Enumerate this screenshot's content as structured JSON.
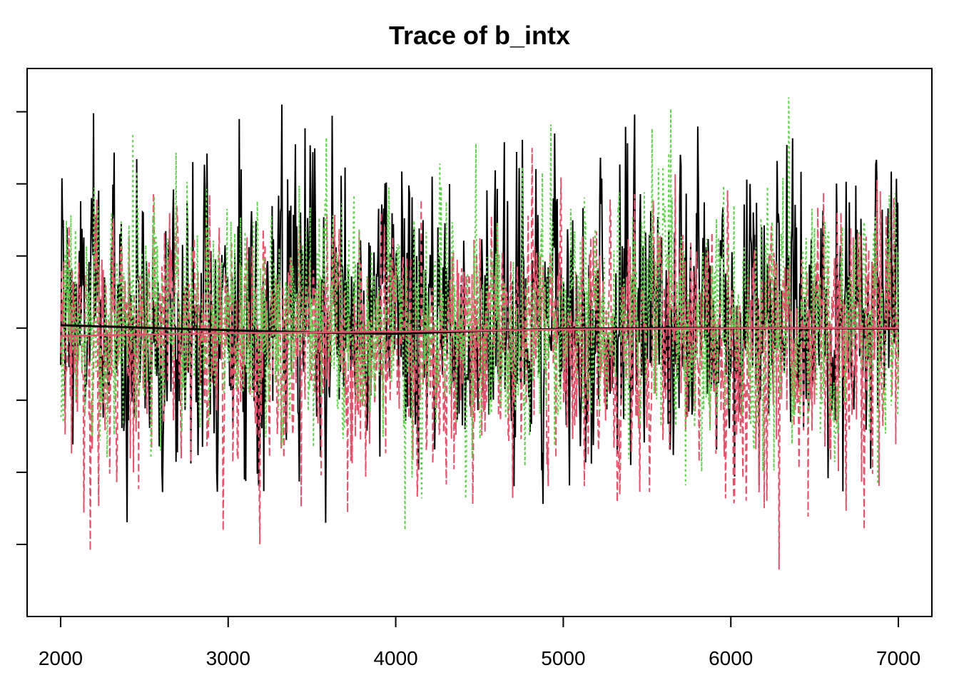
{
  "chart_data": {
    "type": "line",
    "title": "Trace of b_intx",
    "xlabel": "",
    "ylabel": "",
    "xlim": [
      1800,
      7200
    ],
    "ylim": [
      -4.0,
      3.6
    ],
    "x_ticks": [
      2000,
      3000,
      4000,
      5000,
      6000,
      7000
    ],
    "x_tick_labels": [
      "2000",
      "3000",
      "4000",
      "5000",
      "6000",
      "7000"
    ],
    "y_ticks": [
      -3,
      -2,
      -1,
      0,
      1,
      2,
      3
    ],
    "y_tick_labels": [
      "",
      "",
      "",
      "",
      "",
      "",
      ""
    ],
    "iterations": {
      "start": 2000,
      "end": 7000
    },
    "series": [
      {
        "color": "#000000",
        "style": "solid",
        "summary": {
          "mean": 0.0,
          "min": -2.7,
          "max": 3.1
        },
        "smooth": {
          "x": [
            2000,
            3000,
            3500,
            4000,
            4500,
            5000,
            5500,
            6000,
            6500,
            7000
          ],
          "y": [
            0.04,
            -0.03,
            -0.06,
            -0.08,
            -0.04,
            -0.01,
            0.0,
            0.0,
            0.0,
            -0.01
          ]
        }
      },
      {
        "color": "#DF536B",
        "style": "dashed",
        "summary": {
          "mean": 0.0,
          "min": -3.35,
          "max": 2.5
        },
        "smooth": {
          "x": [
            2000,
            3000,
            4000,
            5000,
            6000,
            7000
          ],
          "y": [
            -0.11,
            -0.07,
            -0.05,
            -0.02,
            0.0,
            0.0
          ]
        }
      },
      {
        "color": "#61D04F",
        "style": "dotted",
        "summary": {
          "mean": 0.0,
          "min": -2.8,
          "max": 3.2
        }
      }
    ],
    "grid": false,
    "legend": "none"
  }
}
